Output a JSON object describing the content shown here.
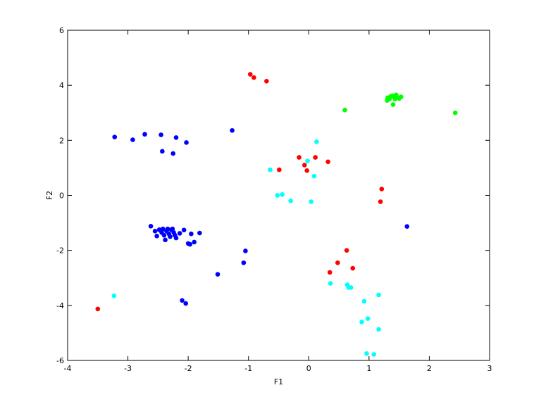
{
  "chart_data": {
    "type": "scatter",
    "title": "",
    "xlabel": "F1",
    "ylabel": "F2",
    "xlim": [
      -4,
      3
    ],
    "ylim": [
      -6,
      6
    ],
    "xticks": [
      -4,
      -3,
      -2,
      -1,
      0,
      1,
      2,
      3
    ],
    "yticks": [
      -6,
      -4,
      -2,
      0,
      2,
      4,
      6
    ],
    "grid": false,
    "legend": "none",
    "series": [
      {
        "color": "#0000ff",
        "points": [
          [
            -3.22,
            2.12
          ],
          [
            -2.92,
            2.02
          ],
          [
            -2.72,
            2.22
          ],
          [
            -2.45,
            2.2
          ],
          [
            -2.2,
            2.1
          ],
          [
            -2.03,
            1.92
          ],
          [
            -2.43,
            1.6
          ],
          [
            -2.25,
            1.52
          ],
          [
            -1.27,
            2.36
          ],
          [
            -2.62,
            -1.12
          ],
          [
            -2.55,
            -1.3
          ],
          [
            -2.52,
            -1.48
          ],
          [
            -2.48,
            -1.25
          ],
          [
            -2.44,
            -1.35
          ],
          [
            -2.42,
            -1.22
          ],
          [
            -2.4,
            -1.45
          ],
          [
            -2.38,
            -1.62
          ],
          [
            -2.36,
            -1.3
          ],
          [
            -2.34,
            -1.22
          ],
          [
            -2.32,
            -1.4
          ],
          [
            -2.3,
            -1.5
          ],
          [
            -2.28,
            -1.25
          ],
          [
            -2.26,
            -1.22
          ],
          [
            -2.24,
            -1.35
          ],
          [
            -2.22,
            -1.45
          ],
          [
            -2.2,
            -1.55
          ],
          [
            -2.14,
            -1.38
          ],
          [
            -2.07,
            -1.26
          ],
          [
            -2.0,
            -1.75
          ],
          [
            -1.97,
            -1.78
          ],
          [
            -1.95,
            -1.4
          ],
          [
            -1.9,
            -1.7
          ],
          [
            -1.81,
            -1.37
          ],
          [
            -1.05,
            -2.02
          ],
          [
            -1.08,
            -2.45
          ],
          [
            -1.51,
            -2.87
          ],
          [
            -2.1,
            -3.82
          ],
          [
            -2.04,
            -3.93
          ],
          [
            1.63,
            -1.13
          ]
        ]
      },
      {
        "color": "#ff0000",
        "points": [
          [
            -0.97,
            4.4
          ],
          [
            -0.91,
            4.28
          ],
          [
            -0.7,
            4.15
          ],
          [
            -0.49,
            0.93
          ],
          [
            -0.16,
            1.38
          ],
          [
            -0.07,
            1.1
          ],
          [
            -0.03,
            0.9
          ],
          [
            0.11,
            1.38
          ],
          [
            0.32,
            1.22
          ],
          [
            1.21,
            0.23
          ],
          [
            1.19,
            -0.23
          ],
          [
            0.63,
            -2.0
          ],
          [
            0.48,
            -2.45
          ],
          [
            0.73,
            -2.65
          ],
          [
            0.35,
            -2.8
          ],
          [
            -3.5,
            -4.13
          ]
        ]
      },
      {
        "color": "#00ffff",
        "points": [
          [
            -0.64,
            0.93
          ],
          [
            0.13,
            1.95
          ],
          [
            -0.02,
            1.25
          ],
          [
            0.09,
            0.7
          ],
          [
            -0.52,
            0.0
          ],
          [
            -0.44,
            0.03
          ],
          [
            -0.3,
            -0.2
          ],
          [
            0.04,
            -0.23
          ],
          [
            0.36,
            -3.2
          ],
          [
            0.64,
            -3.25
          ],
          [
            0.66,
            -3.35
          ],
          [
            0.7,
            -3.35
          ],
          [
            1.16,
            -3.62
          ],
          [
            0.92,
            -3.85
          ],
          [
            0.88,
            -4.6
          ],
          [
            0.98,
            -4.48
          ],
          [
            1.16,
            -4.87
          ],
          [
            0.96,
            -5.75
          ],
          [
            1.08,
            -5.78
          ],
          [
            -3.23,
            -3.65
          ]
        ]
      },
      {
        "color": "#00ff00",
        "points": [
          [
            0.6,
            3.1
          ],
          [
            2.43,
            3.0
          ],
          [
            1.3,
            3.45
          ],
          [
            1.31,
            3.55
          ],
          [
            1.34,
            3.5
          ],
          [
            1.36,
            3.6
          ],
          [
            1.39,
            3.62
          ],
          [
            1.41,
            3.58
          ],
          [
            1.43,
            3.5
          ],
          [
            1.45,
            3.65
          ],
          [
            1.48,
            3.55
          ],
          [
            1.5,
            3.52
          ],
          [
            1.53,
            3.58
          ],
          [
            1.4,
            3.3
          ]
        ]
      }
    ]
  }
}
